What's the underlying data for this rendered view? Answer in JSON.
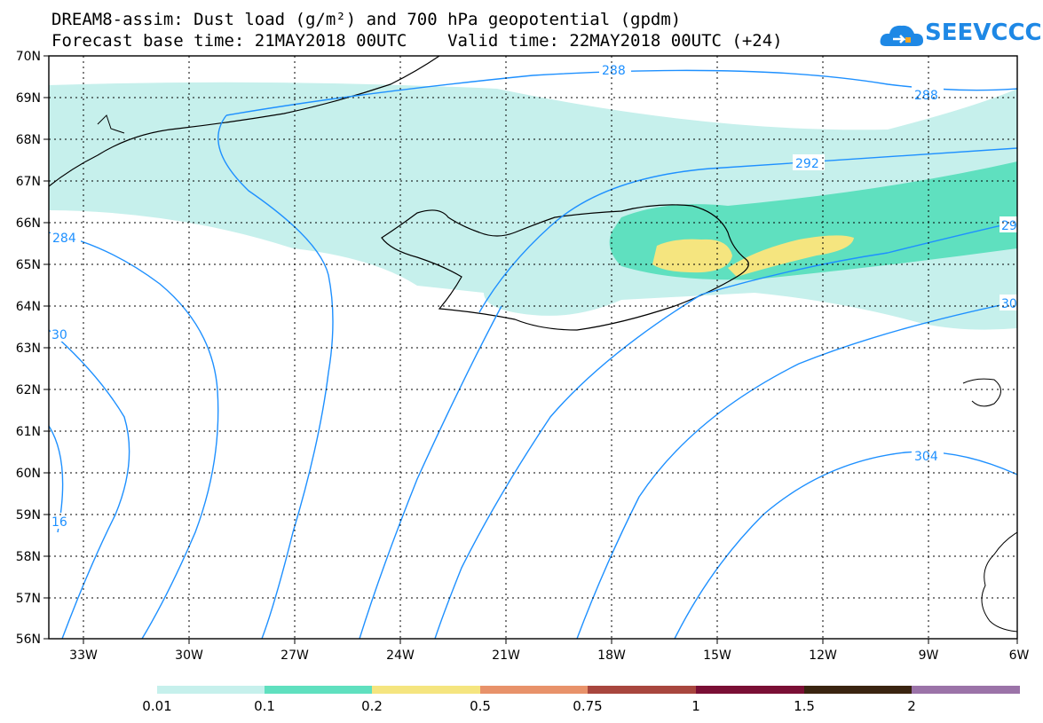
{
  "title": {
    "line1": "DREAM8-assim: Dust load (g/m²) and 700 hPa geopotential (gpdm)",
    "line2": "Forecast base time: 21MAY2018 00UTC    Valid time: 22MAY2018 00UTC (+24)"
  },
  "logo": {
    "text": "SEEVCCC",
    "icon": "cloud-icon",
    "color": "#1e88e5"
  },
  "axes": {
    "lat_labels": [
      "70N",
      "69N",
      "68N",
      "67N",
      "66N",
      "65N",
      "64N",
      "63N",
      "62N",
      "61N",
      "60N",
      "59N",
      "58N",
      "57N",
      "56N"
    ],
    "lon_labels": [
      "33W",
      "30W",
      "27W",
      "24W",
      "21W",
      "18W",
      "15W",
      "12W",
      "9W",
      "6W"
    ],
    "lon_range": [
      -34.5,
      -6
    ],
    "lat_range": [
      56,
      70
    ]
  },
  "contour_labels": [
    "288",
    "288",
    "292",
    "29",
    "284",
    "30",
    "30",
    "304",
    "16"
  ],
  "colorbar": {
    "tick_labels": [
      "0.01",
      "0.1",
      "0.2",
      "0.5",
      "0.75",
      "1",
      "1.5",
      "2"
    ],
    "colors": [
      "#c6f0ec",
      "#5fe0bf",
      "#f5e57f",
      "#e8926a",
      "#a8463e",
      "#7a0f35",
      "#3a2410",
      "#9b73a8"
    ]
  },
  "dust_colors": {
    "low": "#c6f0ec",
    "mid": "#5fe0bf",
    "high": "#f5e57f"
  },
  "contour_color": "#1e90ff"
}
